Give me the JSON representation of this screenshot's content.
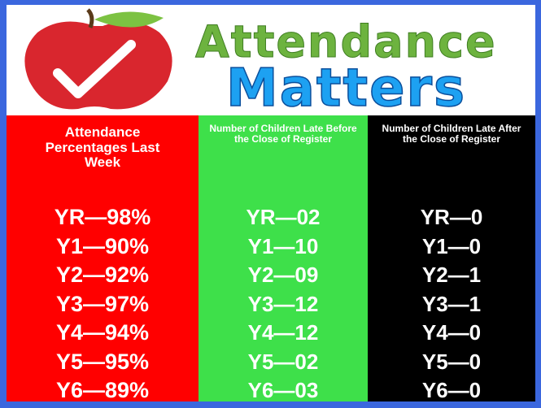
{
  "header": {
    "title_line1": "Attendance",
    "title_line2": "Matters"
  },
  "columns": [
    {
      "heading": "Attendance Percentages Last Week",
      "items": [
        "YR—98%",
        "Y1—90%",
        "Y2—92%",
        "Y3—97%",
        "Y4—94%",
        "Y5—95%",
        "Y6—89%"
      ]
    },
    {
      "heading": "Number of Children Late Before the Close of Register",
      "items": [
        "YR—02",
        "Y1—10",
        "Y2—09",
        "Y3—12",
        "Y4—12",
        "Y5—02",
        "Y6—03"
      ]
    },
    {
      "heading": "Number of  Children Late After the Close of Register",
      "items": [
        "YR—0",
        "Y1—0",
        "Y2—1",
        "Y3—1",
        "Y4—0",
        "Y5—0",
        "Y6—0"
      ]
    }
  ]
}
